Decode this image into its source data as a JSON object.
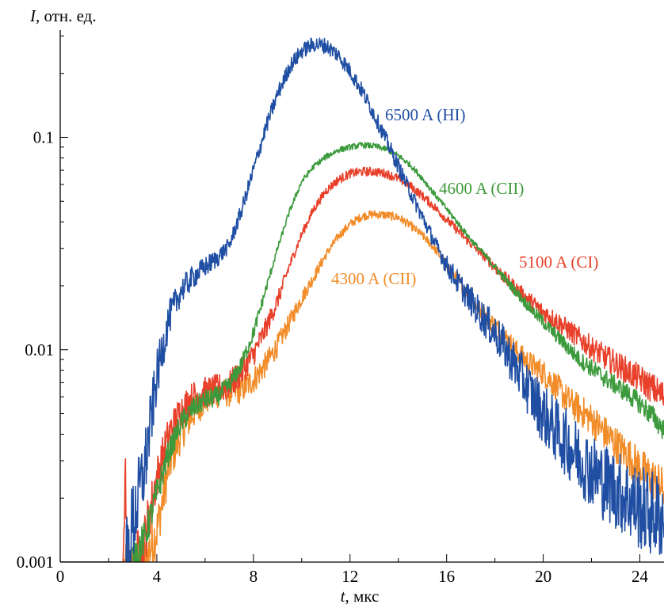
{
  "chart_data": {
    "type": "line",
    "ylabel_symbol": "I",
    "ylabel_rest": ", отн. ед.",
    "xlabel_symbol": "t",
    "xlabel_rest": ", мкс",
    "xlim": [
      0,
      25
    ],
    "ylim": [
      0.001,
      0.32
    ],
    "y_scale": "log",
    "grid": false,
    "x_ticks": [
      0,
      4,
      8,
      12,
      16,
      20,
      24
    ],
    "x_tick_labels": [
      "0",
      "4",
      "8",
      "12",
      "16",
      "20",
      "24"
    ],
    "y_ticks": [
      0.001,
      0.01,
      0.1
    ],
    "y_tick_labels": [
      "0.001",
      "0.01",
      "0.1"
    ],
    "series": [
      {
        "name": "4300 A (CII)",
        "color": "#f28c28",
        "noise": 0.16,
        "points": [
          [
            0,
            0.001
          ],
          [
            2.6,
            0.001
          ],
          [
            2.7,
            0.0009
          ],
          [
            3.5,
            0.001
          ],
          [
            4.0,
            0.0014
          ],
          [
            4.5,
            0.0028
          ],
          [
            5.0,
            0.004
          ],
          [
            5.5,
            0.005
          ],
          [
            6.0,
            0.0058
          ],
          [
            6.5,
            0.0062
          ],
          [
            7.0,
            0.0063
          ],
          [
            7.5,
            0.0065
          ],
          [
            8.0,
            0.0072
          ],
          [
            8.5,
            0.0085
          ],
          [
            9.0,
            0.0105
          ],
          [
            9.5,
            0.0135
          ],
          [
            10.0,
            0.0175
          ],
          [
            10.5,
            0.022
          ],
          [
            11.0,
            0.028
          ],
          [
            11.5,
            0.034
          ],
          [
            12.0,
            0.039
          ],
          [
            12.5,
            0.0425
          ],
          [
            13.0,
            0.0435
          ],
          [
            13.5,
            0.043
          ],
          [
            14.0,
            0.042
          ],
          [
            14.5,
            0.0385
          ],
          [
            15.0,
            0.0345
          ],
          [
            15.5,
            0.03
          ],
          [
            16.0,
            0.025
          ],
          [
            16.5,
            0.021
          ],
          [
            17.0,
            0.0175
          ],
          [
            17.5,
            0.0148
          ],
          [
            18.0,
            0.013
          ],
          [
            18.5,
            0.0112
          ],
          [
            19.0,
            0.0095
          ],
          [
            19.5,
            0.0085
          ],
          [
            20.0,
            0.0078
          ],
          [
            20.5,
            0.0068
          ],
          [
            21.0,
            0.0058
          ],
          [
            22.0,
            0.0047
          ],
          [
            23.0,
            0.0036
          ],
          [
            24.0,
            0.0028
          ],
          [
            25.0,
            0.0022
          ]
        ]
      },
      {
        "name": "5100 A (CI)",
        "color": "#e8402a",
        "noise": 0.17,
        "points": [
          [
            0,
            0.001
          ],
          [
            2.6,
            0.001
          ],
          [
            2.7,
            0.0025
          ],
          [
            2.8,
            0.0008
          ],
          [
            3.5,
            0.0013
          ],
          [
            4.0,
            0.0025
          ],
          [
            4.5,
            0.004
          ],
          [
            5.0,
            0.0052
          ],
          [
            5.5,
            0.006
          ],
          [
            6.0,
            0.0063
          ],
          [
            6.5,
            0.0065
          ],
          [
            7.0,
            0.0068
          ],
          [
            7.5,
            0.0078
          ],
          [
            8.0,
            0.0095
          ],
          [
            8.5,
            0.0125
          ],
          [
            9.0,
            0.017
          ],
          [
            9.5,
            0.025
          ],
          [
            10.0,
            0.035
          ],
          [
            10.5,
            0.046
          ],
          [
            11.0,
            0.056
          ],
          [
            11.5,
            0.063
          ],
          [
            12.0,
            0.0675
          ],
          [
            12.5,
            0.069
          ],
          [
            13.0,
            0.069
          ],
          [
            13.5,
            0.0675
          ],
          [
            14.0,
            0.064
          ],
          [
            14.5,
            0.059
          ],
          [
            15.0,
            0.053
          ],
          [
            15.5,
            0.047
          ],
          [
            16.0,
            0.041
          ],
          [
            16.5,
            0.036
          ],
          [
            17.0,
            0.0315
          ],
          [
            17.5,
            0.028
          ],
          [
            18.0,
            0.0245
          ],
          [
            18.5,
            0.0212
          ],
          [
            19.0,
            0.0188
          ],
          [
            19.5,
            0.0168
          ],
          [
            20.0,
            0.015
          ],
          [
            20.5,
            0.0138
          ],
          [
            21.0,
            0.0125
          ],
          [
            21.5,
            0.0113
          ],
          [
            22.0,
            0.0102
          ],
          [
            22.5,
            0.0093
          ],
          [
            23.0,
            0.0086
          ],
          [
            23.5,
            0.0079
          ],
          [
            24.0,
            0.0073
          ],
          [
            24.5,
            0.0066
          ],
          [
            25.0,
            0.006
          ]
        ]
      },
      {
        "name": "4600 A (CII)",
        "color": "#3c9a3c",
        "noise": 0.11,
        "points": [
          [
            0,
            0.001
          ],
          [
            2.6,
            0.001
          ],
          [
            2.7,
            0.0009
          ],
          [
            3.5,
            0.0013
          ],
          [
            4.0,
            0.0021
          ],
          [
            4.5,
            0.0033
          ],
          [
            5.0,
            0.0045
          ],
          [
            5.5,
            0.0053
          ],
          [
            6.0,
            0.0058
          ],
          [
            6.5,
            0.006
          ],
          [
            7.0,
            0.0068
          ],
          [
            7.5,
            0.0085
          ],
          [
            8.0,
            0.012
          ],
          [
            8.5,
            0.019
          ],
          [
            9.0,
            0.03
          ],
          [
            9.5,
            0.045
          ],
          [
            10.0,
            0.062
          ],
          [
            10.5,
            0.073
          ],
          [
            11.0,
            0.081
          ],
          [
            11.5,
            0.087
          ],
          [
            12.0,
            0.09
          ],
          [
            12.5,
            0.092
          ],
          [
            13.0,
            0.091
          ],
          [
            13.5,
            0.088
          ],
          [
            14.0,
            0.082
          ],
          [
            14.5,
            0.074
          ],
          [
            15.0,
            0.064
          ],
          [
            15.5,
            0.054
          ],
          [
            16.0,
            0.046
          ],
          [
            16.5,
            0.039
          ],
          [
            17.0,
            0.033
          ],
          [
            17.5,
            0.0285
          ],
          [
            18.0,
            0.0245
          ],
          [
            18.5,
            0.021
          ],
          [
            19.0,
            0.018
          ],
          [
            19.5,
            0.0155
          ],
          [
            20.0,
            0.0135
          ],
          [
            20.5,
            0.0118
          ],
          [
            21.0,
            0.0103
          ],
          [
            21.5,
            0.009
          ],
          [
            22.0,
            0.0082
          ],
          [
            22.5,
            0.0074
          ],
          [
            23.0,
            0.0068
          ],
          [
            23.5,
            0.0062
          ],
          [
            24.0,
            0.0056
          ],
          [
            24.5,
            0.0049
          ],
          [
            25.0,
            0.0042
          ]
        ]
      },
      {
        "name": "6500 A (HI)",
        "color": "#1f4ea3",
        "noise": 0.3,
        "points": [
          [
            0,
            0.001
          ],
          [
            2.6,
            0.001
          ],
          [
            2.65,
            0.0008
          ],
          [
            3.0,
            0.0015
          ],
          [
            3.5,
            0.0028
          ],
          [
            4.0,
            0.0075
          ],
          [
            4.5,
            0.014
          ],
          [
            5.0,
            0.019
          ],
          [
            5.5,
            0.022
          ],
          [
            6.0,
            0.0245
          ],
          [
            6.5,
            0.027
          ],
          [
            7.0,
            0.031
          ],
          [
            7.5,
            0.045
          ],
          [
            8.0,
            0.07
          ],
          [
            8.5,
            0.11
          ],
          [
            9.0,
            0.16
          ],
          [
            9.5,
            0.215
          ],
          [
            10.0,
            0.255
          ],
          [
            10.5,
            0.275
          ],
          [
            11.0,
            0.27
          ],
          [
            11.5,
            0.245
          ],
          [
            12.0,
            0.205
          ],
          [
            12.5,
            0.165
          ],
          [
            13.0,
            0.128
          ],
          [
            13.5,
            0.097
          ],
          [
            14.0,
            0.073
          ],
          [
            14.5,
            0.055
          ],
          [
            15.0,
            0.042
          ],
          [
            15.5,
            0.032
          ],
          [
            16.0,
            0.025
          ],
          [
            16.5,
            0.0205
          ],
          [
            17.0,
            0.017
          ],
          [
            17.5,
            0.0142
          ],
          [
            18.0,
            0.012
          ],
          [
            18.5,
            0.0098
          ],
          [
            19.0,
            0.0078
          ],
          [
            19.5,
            0.0062
          ],
          [
            20.0,
            0.005
          ],
          [
            20.5,
            0.0042
          ],
          [
            21.0,
            0.0036
          ],
          [
            21.5,
            0.0031
          ],
          [
            22.0,
            0.0027
          ],
          [
            22.5,
            0.0024
          ],
          [
            23.0,
            0.0022
          ],
          [
            23.5,
            0.002
          ],
          [
            24.0,
            0.0018
          ],
          [
            24.5,
            0.0017
          ],
          [
            25.0,
            0.0016
          ]
        ]
      }
    ]
  }
}
